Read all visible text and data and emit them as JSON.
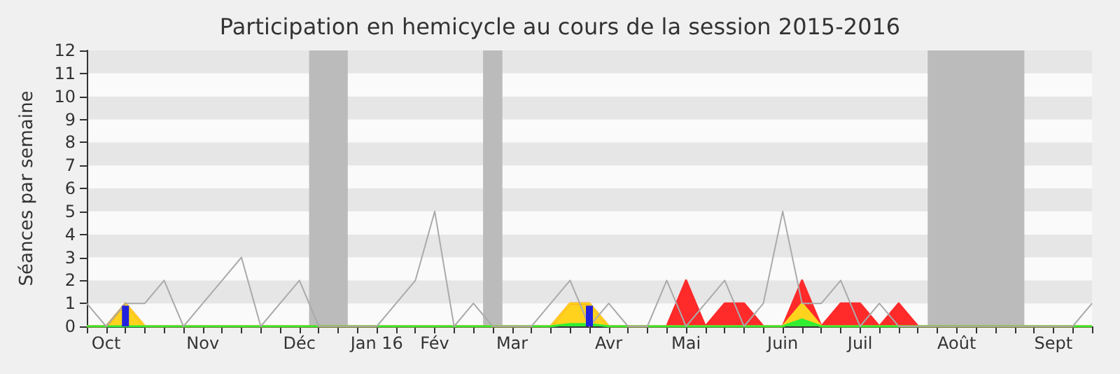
{
  "chart_data": {
    "type": "line",
    "title": "Participation en hemicycle au cours de la session 2015-2016",
    "ylabel": "Séances par semaine",
    "categories": [
      null,
      "Oct",
      null,
      null,
      null,
      null,
      "Nov",
      null,
      null,
      null,
      null,
      "Déc",
      null,
      null,
      null,
      "Jan 16",
      null,
      null,
      "Fév",
      null,
      null,
      null,
      "Mar",
      null,
      null,
      null,
      null,
      "Avr",
      null,
      null,
      null,
      "Mai",
      null,
      null,
      null,
      null,
      "Juin",
      null,
      null,
      null,
      "Juil",
      null,
      null,
      null,
      null,
      "Août",
      null,
      null,
      null,
      null,
      "Sept",
      null,
      null
    ],
    "series": [
      {
        "color": "#aaaaaa",
        "values": [
          1,
          0,
          1,
          1,
          2,
          0,
          1,
          2,
          3,
          0,
          1,
          2,
          0,
          0,
          0,
          0,
          1,
          2,
          5,
          0,
          1,
          0,
          0,
          0,
          1,
          2,
          0,
          1,
          0,
          0,
          2,
          0,
          1,
          2,
          0,
          1,
          5,
          1,
          1,
          2,
          0,
          1,
          0,
          0,
          0,
          0,
          0,
          0,
          0,
          0,
          0,
          0,
          1
        ]
      },
      {
        "type": "area",
        "color": "#ff2a2a",
        "values": [
          0,
          0,
          1,
          0,
          0,
          0,
          0,
          0,
          0,
          0,
          0,
          0,
          0,
          0,
          0,
          0,
          0,
          0,
          0,
          0,
          0,
          0,
          0,
          0,
          0,
          1,
          1,
          0,
          0,
          0,
          0,
          2,
          0,
          1,
          1,
          0,
          0,
          2,
          0,
          1,
          1,
          0,
          1,
          0,
          0,
          0,
          0,
          0,
          0,
          0,
          0,
          0,
          0
        ]
      },
      {
        "type": "area",
        "color": "#ffd21e",
        "values": [
          0,
          0,
          1,
          0,
          0,
          0,
          0,
          0,
          0,
          0,
          0,
          0,
          0,
          0,
          0,
          0,
          0,
          0,
          0,
          0,
          0,
          0,
          0,
          0,
          0,
          1,
          1,
          0,
          0,
          0,
          0,
          0,
          0,
          0,
          0,
          0,
          0,
          1,
          0,
          0,
          0,
          0,
          0,
          0,
          0,
          0,
          0,
          0,
          0,
          0,
          0,
          0,
          0
        ]
      },
      {
        "type": "area",
        "color": "#33ee33",
        "values": [
          0,
          0,
          0,
          0,
          0,
          0,
          0,
          0,
          0,
          0,
          0,
          0,
          0,
          0,
          0,
          0,
          0,
          0,
          0,
          0,
          0,
          0,
          0,
          0,
          0,
          0.1,
          0.1,
          0,
          0,
          0,
          0,
          0,
          0,
          0,
          0,
          0,
          0,
          0.3,
          0,
          0,
          0,
          0,
          0,
          0,
          0,
          0,
          0,
          0,
          0,
          0,
          0,
          0,
          0
        ]
      },
      {
        "type": "bar",
        "color": "#2222dd",
        "values": [
          0,
          0,
          0.9,
          0,
          0,
          0,
          0,
          0,
          0,
          0,
          0,
          0,
          0,
          0,
          0,
          0,
          0,
          0,
          0,
          0,
          0,
          0,
          0,
          0,
          0,
          0,
          0.9,
          0,
          0,
          0,
          0,
          0,
          0,
          0,
          0,
          0,
          0,
          0,
          0,
          0,
          0,
          0,
          0,
          0,
          0,
          0,
          0,
          0,
          0,
          0,
          0,
          0,
          0
        ]
      }
    ],
    "ylim": [
      0,
      12
    ],
    "yticks": [
      0,
      1,
      2,
      3,
      4,
      5,
      6,
      7,
      8,
      9,
      10,
      11,
      12
    ],
    "marker": "none"
  }
}
